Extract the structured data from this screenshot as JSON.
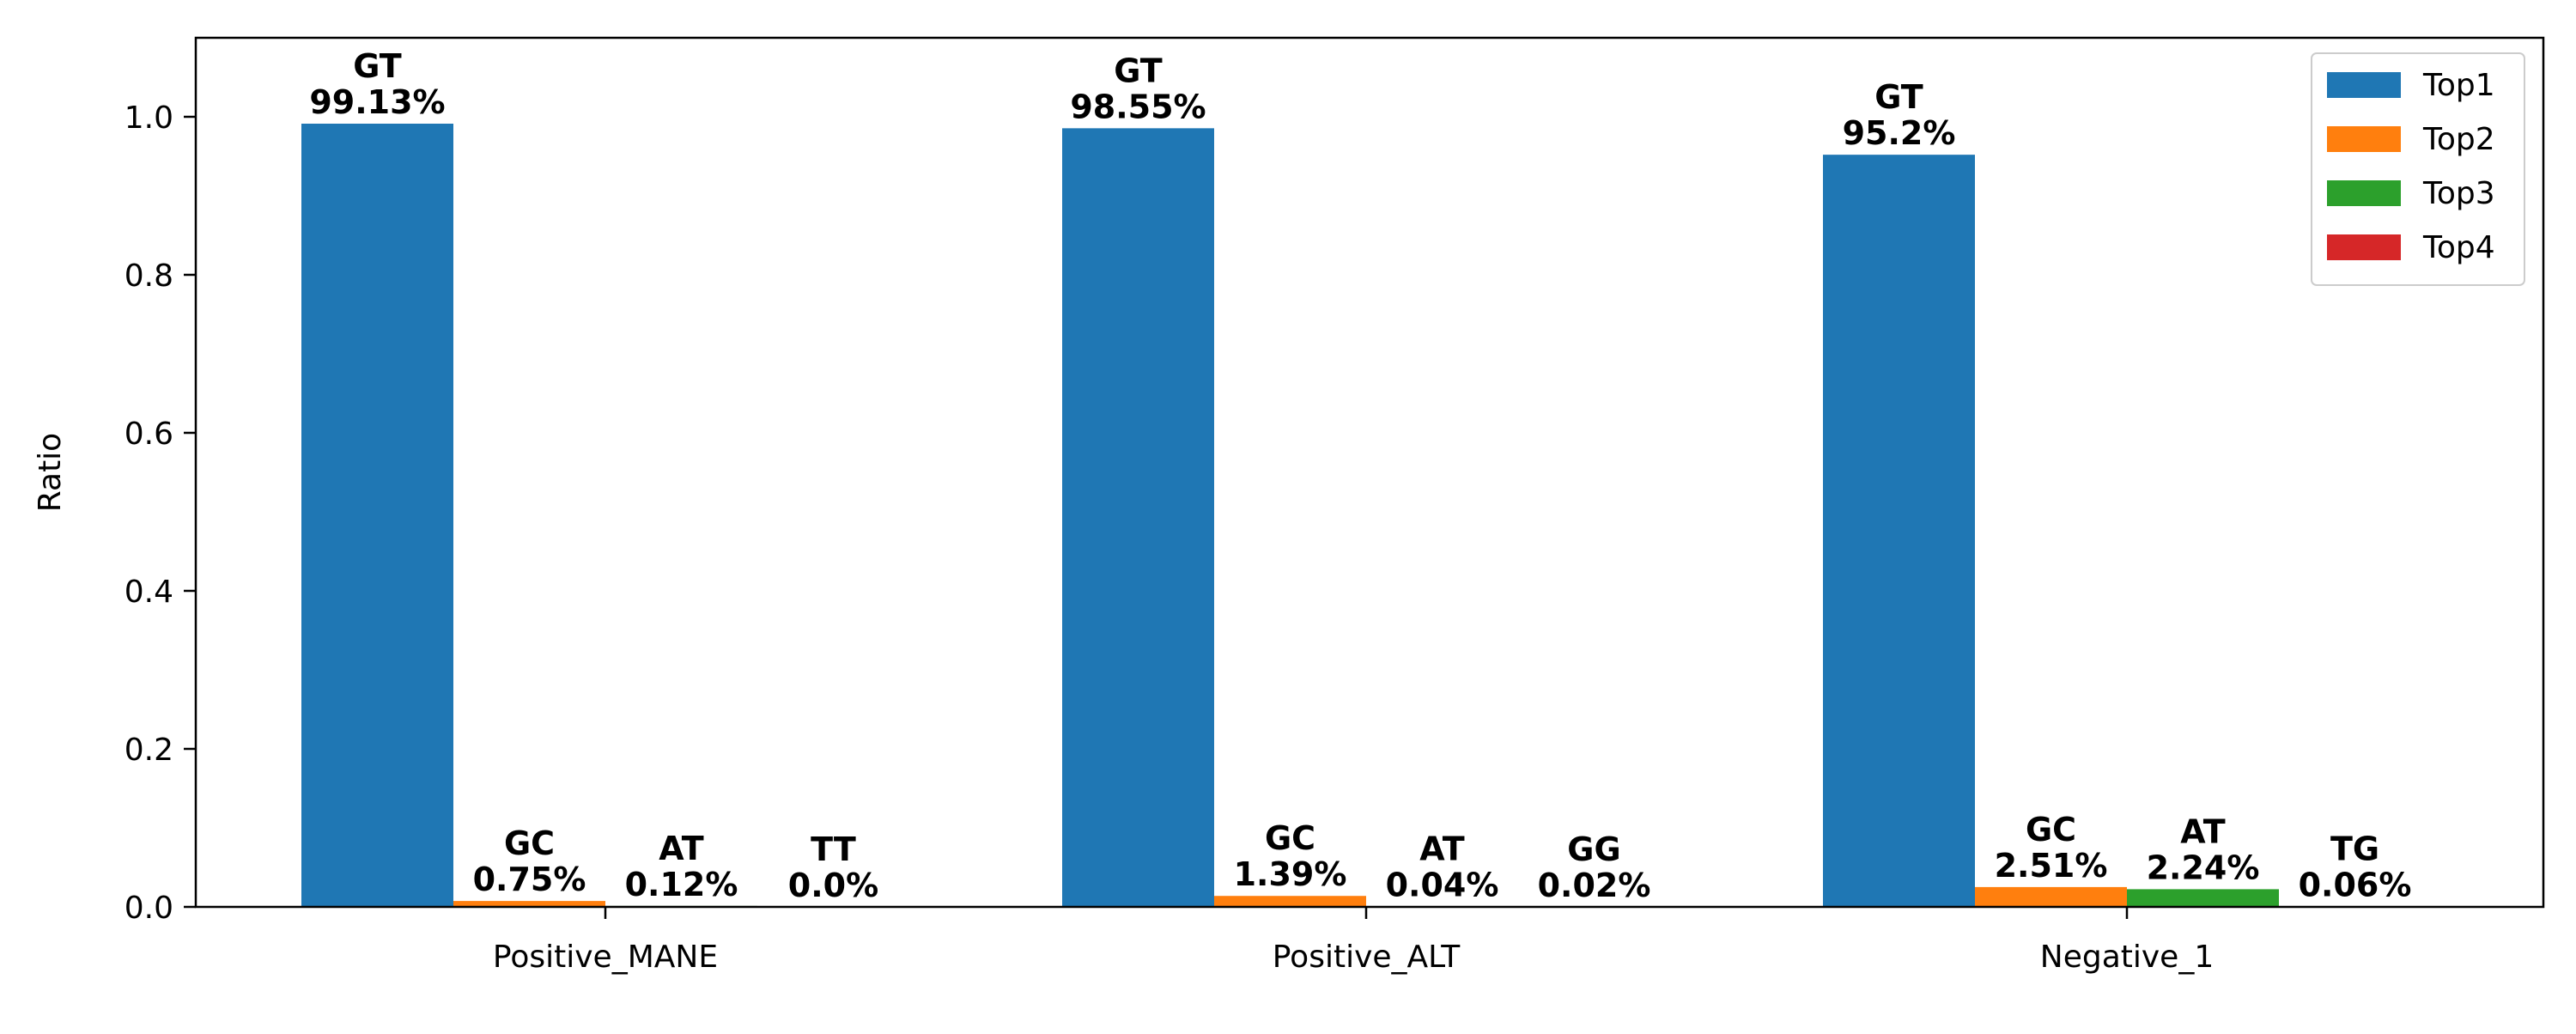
{
  "chart_data": {
    "type": "bar",
    "title": "",
    "xlabel": "",
    "ylabel": "Ratio",
    "ylim": [
      0,
      1.1
    ],
    "yticks": [
      "0.0",
      "0.2",
      "0.4",
      "0.6",
      "0.8",
      "1.0"
    ],
    "grid": false,
    "legend_position": "top-right",
    "categories": [
      "Positive_MANE",
      "Positive_ALT",
      "Negative_1"
    ],
    "series": [
      {
        "name": "Top1",
        "color": "#1f77b4",
        "values": [
          0.9913,
          0.9855,
          0.952
        ],
        "labels": [
          {
            "motif": "GT",
            "percent": "99.13%"
          },
          {
            "motif": "GT",
            "percent": "98.55%"
          },
          {
            "motif": "GT",
            "percent": "95.2%"
          }
        ]
      },
      {
        "name": "Top2",
        "color": "#ff7f0e",
        "values": [
          0.0075,
          0.0139,
          0.0251
        ],
        "labels": [
          {
            "motif": "GC",
            "percent": "0.75%"
          },
          {
            "motif": "GC",
            "percent": "1.39%"
          },
          {
            "motif": "GC",
            "percent": "2.51%"
          }
        ]
      },
      {
        "name": "Top3",
        "color": "#2ca02c",
        "values": [
          0.0012,
          0.0004,
          0.0224
        ],
        "labels": [
          {
            "motif": "AT",
            "percent": "0.12%"
          },
          {
            "motif": "AT",
            "percent": "0.04%"
          },
          {
            "motif": "AT",
            "percent": "2.24%"
          }
        ]
      },
      {
        "name": "Top4",
        "color": "#d62728",
        "values": [
          0.0,
          0.0002,
          0.0006
        ],
        "labels": [
          {
            "motif": "TT",
            "percent": "0.0%"
          },
          {
            "motif": "GG",
            "percent": "0.02%"
          },
          {
            "motif": "TG",
            "percent": "0.06%"
          }
        ]
      }
    ]
  }
}
